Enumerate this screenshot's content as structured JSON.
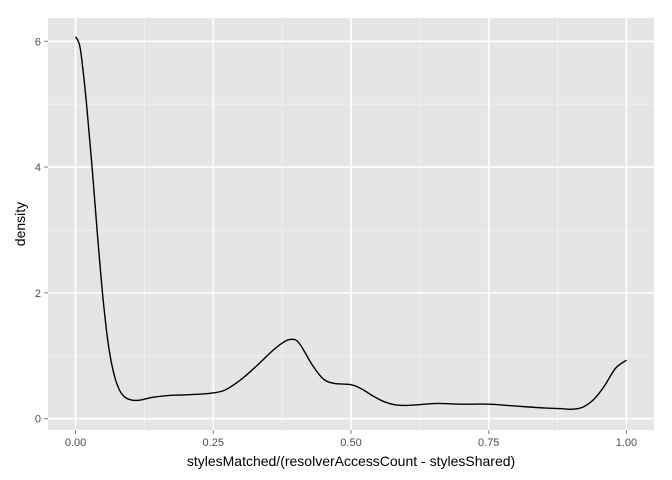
{
  "chart_data": {
    "type": "line",
    "title": "",
    "xlabel": "stylesMatched/(resolverAccessCount - stylesShared)",
    "ylabel": "density",
    "xlim": [
      -0.05,
      1.05
    ],
    "ylim": [
      -0.18,
      6.37
    ],
    "x_ticks": [
      0.0,
      0.25,
      0.5,
      0.75,
      1.0
    ],
    "x_tick_labels": [
      "0.00",
      "0.25",
      "0.50",
      "0.75",
      "1.00"
    ],
    "y_ticks": [
      0,
      2,
      4,
      6
    ],
    "y_tick_labels": [
      "0",
      "2",
      "4",
      "6"
    ],
    "grid": true,
    "colors": {
      "panel": "#e5e5e5",
      "grid_major": "#ffffff",
      "grid_minor": "#f2f2f2",
      "line": "#000000"
    },
    "series": [
      {
        "x": [
          0.0,
          0.005,
          0.01,
          0.02,
          0.03,
          0.04,
          0.05,
          0.06,
          0.07,
          0.08,
          0.09,
          0.1,
          0.11,
          0.12,
          0.14,
          0.17,
          0.2,
          0.24,
          0.27,
          0.3,
          0.33,
          0.36,
          0.38,
          0.39,
          0.4,
          0.41,
          0.43,
          0.45,
          0.47,
          0.5,
          0.52,
          0.54,
          0.56,
          0.58,
          0.6,
          0.62,
          0.65,
          0.67,
          0.7,
          0.75,
          0.8,
          0.85,
          0.88,
          0.9,
          0.92,
          0.94,
          0.96,
          0.98,
          1.0
        ],
        "y": [
          6.07,
          6.0,
          5.8,
          5.0,
          4.0,
          2.9,
          1.9,
          1.15,
          0.7,
          0.45,
          0.34,
          0.3,
          0.29,
          0.3,
          0.34,
          0.37,
          0.38,
          0.4,
          0.45,
          0.62,
          0.85,
          1.1,
          1.23,
          1.26,
          1.25,
          1.15,
          0.85,
          0.63,
          0.56,
          0.54,
          0.47,
          0.36,
          0.27,
          0.22,
          0.21,
          0.22,
          0.24,
          0.24,
          0.23,
          0.23,
          0.2,
          0.17,
          0.16,
          0.15,
          0.18,
          0.3,
          0.52,
          0.8,
          0.93
        ]
      }
    ]
  }
}
